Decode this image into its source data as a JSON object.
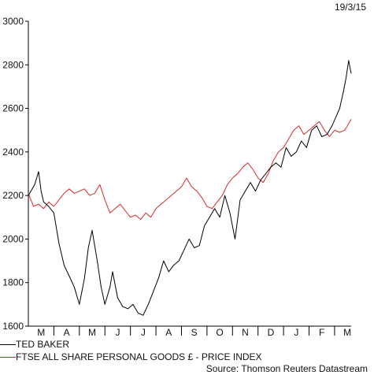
{
  "chart_data": {
    "type": "line",
    "date_label": "19/3/15",
    "source": "Source: Thomson Reuters Datastream",
    "ylim": [
      1600,
      3000
    ],
    "yticks": [
      1600,
      1800,
      2000,
      2200,
      2400,
      2600,
      2800,
      3000
    ],
    "months": [
      "M",
      "A",
      "M",
      "J",
      "J",
      "A",
      "S",
      "O",
      "N",
      "D",
      "J",
      "F",
      "M"
    ],
    "x_range": [
      0,
      12.65
    ],
    "grid": false,
    "legend_position": "bottom-left",
    "series": [
      {
        "name": "TED BAKER",
        "color": "#000000",
        "x": [
          0,
          0.25,
          0.4,
          0.5,
          0.6,
          0.8,
          1.0,
          1.2,
          1.4,
          1.6,
          1.8,
          2.0,
          2.2,
          2.35,
          2.5,
          2.7,
          2.85,
          3.0,
          3.2,
          3.3,
          3.5,
          3.7,
          3.9,
          4.1,
          4.3,
          4.5,
          4.7,
          4.9,
          5.1,
          5.3,
          5.5,
          5.7,
          5.9,
          6.1,
          6.3,
          6.5,
          6.7,
          6.9,
          7.1,
          7.3,
          7.5,
          7.7,
          7.9,
          8.1,
          8.3,
          8.5,
          8.7,
          8.9,
          9.1,
          9.3,
          9.5,
          9.7,
          9.9,
          10.1,
          10.3,
          10.5,
          10.7,
          10.9,
          11.1,
          11.3,
          11.5,
          11.7,
          11.9,
          12.05,
          12.2,
          12.35,
          12.45,
          12.55,
          12.65
        ],
        "y": [
          2200,
          2250,
          2310,
          2220,
          2170,
          2150,
          2120,
          1980,
          1880,
          1830,
          1780,
          1700,
          1820,
          1960,
          2040,
          1900,
          1780,
          1700,
          1780,
          1850,
          1730,
          1690,
          1680,
          1700,
          1660,
          1650,
          1700,
          1760,
          1820,
          1900,
          1850,
          1880,
          1900,
          1950,
          2000,
          1960,
          1970,
          2060,
          2100,
          2140,
          2100,
          2200,
          2120,
          2000,
          2180,
          2220,
          2260,
          2220,
          2270,
          2300,
          2330,
          2350,
          2330,
          2420,
          2380,
          2400,
          2450,
          2420,
          2500,
          2520,
          2470,
          2480,
          2520,
          2560,
          2600,
          2680,
          2740,
          2820,
          2760
        ]
      },
      {
        "name": "FTSE ALL SHARE PERSONAL GOODS £ - PRICE INDEX",
        "color": "#d42a2a",
        "x": [
          0,
          0.2,
          0.4,
          0.6,
          0.8,
          1.0,
          1.2,
          1.4,
          1.6,
          1.8,
          2.0,
          2.2,
          2.4,
          2.6,
          2.8,
          3.0,
          3.2,
          3.4,
          3.6,
          3.8,
          4.0,
          4.2,
          4.4,
          4.6,
          4.8,
          5.0,
          5.2,
          5.4,
          5.6,
          5.8,
          6.0,
          6.2,
          6.4,
          6.6,
          6.8,
          7.0,
          7.2,
          7.4,
          7.6,
          7.8,
          8.0,
          8.2,
          8.4,
          8.6,
          8.8,
          9.0,
          9.2,
          9.4,
          9.6,
          9.8,
          10.0,
          10.2,
          10.4,
          10.6,
          10.8,
          11.0,
          11.2,
          11.4,
          11.6,
          11.8,
          12.0,
          12.2,
          12.4,
          12.55,
          12.65
        ],
        "y": [
          2210,
          2150,
          2160,
          2140,
          2170,
          2150,
          2180,
          2210,
          2230,
          2210,
          2220,
          2230,
          2200,
          2210,
          2250,
          2180,
          2120,
          2140,
          2160,
          2130,
          2100,
          2110,
          2090,
          2120,
          2100,
          2140,
          2160,
          2180,
          2200,
          2220,
          2240,
          2280,
          2240,
          2220,
          2190,
          2150,
          2140,
          2170,
          2200,
          2250,
          2280,
          2300,
          2330,
          2350,
          2320,
          2280,
          2260,
          2300,
          2360,
          2400,
          2420,
          2460,
          2500,
          2520,
          2480,
          2500,
          2520,
          2540,
          2500,
          2470,
          2500,
          2490,
          2500,
          2530,
          2550
        ]
      }
    ]
  }
}
